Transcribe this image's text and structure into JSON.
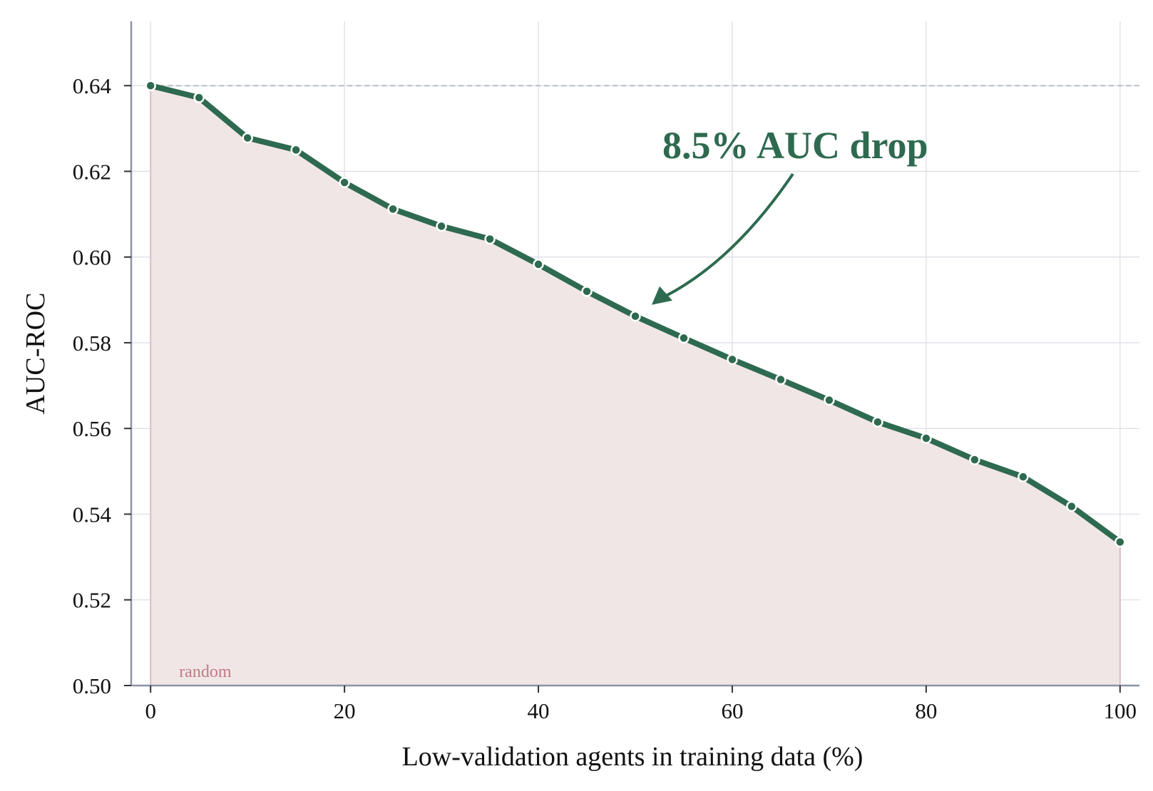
{
  "chart_data": {
    "type": "line",
    "xlabel": "Low-validation agents in training data (%)",
    "ylabel": "AUC-ROC",
    "xlim": [
      -2,
      102
    ],
    "ylim": [
      0.5,
      0.655
    ],
    "xticks": [
      0,
      20,
      40,
      60,
      80,
      100
    ],
    "yticks": [
      0.5,
      0.52,
      0.54,
      0.56,
      0.58,
      0.6,
      0.62,
      0.64
    ],
    "x": [
      0,
      5,
      10,
      15,
      20,
      25,
      30,
      35,
      40,
      45,
      50,
      55,
      60,
      65,
      70,
      75,
      80,
      85,
      90,
      95,
      100
    ],
    "values": [
      0.64,
      0.6372,
      0.6278,
      0.625,
      0.6174,
      0.6112,
      0.6072,
      0.6042,
      0.5983,
      0.592,
      0.5862,
      0.5811,
      0.5761,
      0.5714,
      0.5666,
      0.5615,
      0.5577,
      0.5527,
      0.5487,
      0.5418,
      0.5335
    ],
    "baseline_value": 0.64,
    "reference_label": "random",
    "reference_value": 0.5,
    "annotation": {
      "text": "8.5% AUC drop",
      "target_x": 50,
      "target_y": 0.5862
    },
    "grid": true,
    "colors": {
      "line": "#2e6a4f",
      "fill": "#f1e6e6",
      "baseline": "#b4bcc6",
      "grid": "#dcdee6",
      "axis": "#8a93a6",
      "reference_text": "#c07a86"
    }
  }
}
